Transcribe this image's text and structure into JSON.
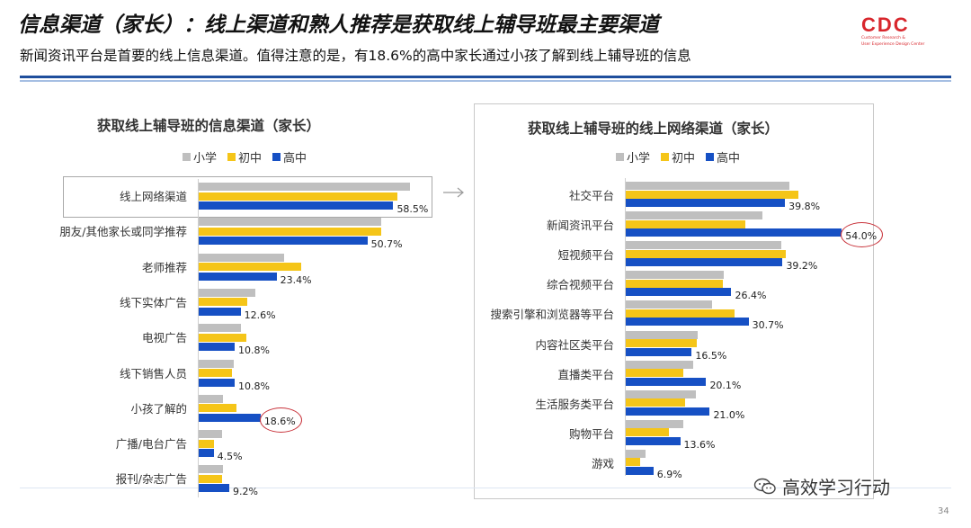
{
  "header": {
    "title": "信息渠道（家长）：线上渠道和熟人推荐是获取线上辅导班最主要渠道",
    "subtitle": "新闻资讯平台是首要的线上信息渠道。值得注意的是，有18.6%的高中家长通过小孩了解到线上辅导班的信息"
  },
  "logo": {
    "mark": "CDC",
    "line1": "Customer Research &",
    "line2": "User Experience Design Center"
  },
  "watermark": {
    "text": "高效学习行动",
    "icon": "wechat-icon"
  },
  "page_number": "34",
  "colors": {
    "小学": "#bfbfbf",
    "初中": "#f5c518",
    "高中": "#1650c4",
    "accent_line": "#1f4e9c",
    "circle": "#c8323a"
  },
  "chart_data": [
    {
      "type": "bar",
      "orientation": "horizontal",
      "title": "获取线上辅导班的信息渠道（家长）",
      "legend": [
        "小学",
        "初中",
        "高中"
      ],
      "legend_position": "top",
      "categories": [
        "线上网络渠道",
        "朋友/其他家长或同学推荐",
        "老师推荐",
        "线下实体广告",
        "电视广告",
        "线下销售人员",
        "小孩了解的",
        "广播/电台广告",
        "报刊/杂志广告"
      ],
      "series": [
        {
          "name": "小学",
          "values": [
            63.5,
            54.8,
            25.6,
            17.1,
            12.8,
            10.6,
            7.3,
            7.0,
            7.2
          ]
        },
        {
          "name": "初中",
          "values": [
            59.7,
            54.9,
            30.7,
            14.6,
            14.4,
            10.1,
            11.4,
            4.7,
            7.1
          ]
        },
        {
          "name": "高中",
          "values": [
            58.5,
            50.7,
            23.4,
            12.6,
            10.8,
            10.8,
            18.6,
            4.5,
            9.2
          ]
        }
      ],
      "value_labels": [
        "58.5%",
        "50.7%",
        "23.4%",
        "12.6%",
        "10.8%",
        "10.8%",
        "18.6%",
        "4.5%",
        "9.2%"
      ],
      "highlighted_category": "线上网络渠道",
      "circled_label": "18.6%"
    },
    {
      "type": "bar",
      "orientation": "horizontal",
      "title": "获取线上辅导班的线上网络渠道（家长）",
      "legend": [
        "小学",
        "初中",
        "高中"
      ],
      "legend_position": "top",
      "categories": [
        "社交平台",
        "新闻资讯平台",
        "短视频平台",
        "综合视频平台",
        "搜索引擎和浏览器等平台",
        "内容社区类平台",
        "直播类平台",
        "生活服务类平台",
        "购物平台",
        "游戏"
      ],
      "series": [
        {
          "name": "小学",
          "values": [
            40.8,
            34.2,
            38.9,
            24.6,
            21.5,
            17.9,
            16.9,
            17.5,
            14.3,
            5.0
          ]
        },
        {
          "name": "初中",
          "values": [
            43.2,
            29.8,
            40.0,
            24.3,
            27.1,
            17.7,
            14.4,
            14.9,
            10.8,
            3.7
          ]
        },
        {
          "name": "高中",
          "values": [
            39.8,
            54.0,
            39.2,
            26.4,
            30.7,
            16.5,
            20.1,
            21.0,
            13.6,
            6.9
          ]
        }
      ],
      "value_labels": [
        "39.8%",
        "54.0%",
        "39.2%",
        "26.4%",
        "30.7%",
        "16.5%",
        "20.1%",
        "21.0%",
        "13.6%",
        "6.9%"
      ],
      "circled_label": "54.0%"
    }
  ]
}
